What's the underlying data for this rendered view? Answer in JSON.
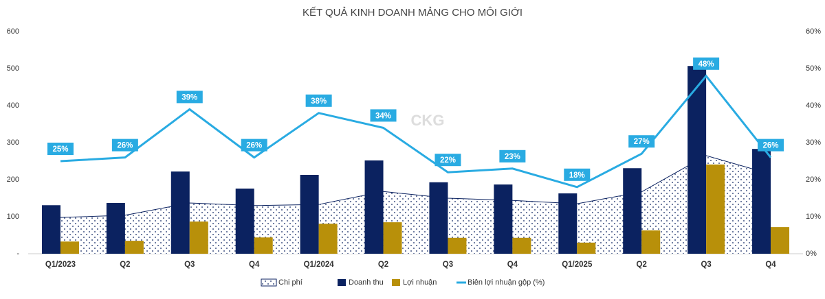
{
  "chart_data": {
    "type": "combo",
    "title": "KẾT QUẢ KINH DOANH MẢNG CHO MÔI GIỚI",
    "watermark": "CKG",
    "categories": [
      "Q1/2023",
      "Q2",
      "Q3",
      "Q4",
      "Q1/2024",
      "Q2",
      "Q3",
      "Q4",
      "Q1/2025",
      "Q2",
      "Q3",
      "Q4"
    ],
    "series": [
      {
        "name": "Chi phí",
        "type": "area",
        "color": "#0b2260",
        "values": [
          98,
          104,
          137,
          130,
          133,
          168,
          150,
          144,
          135,
          167,
          265,
          215
        ]
      },
      {
        "name": "Doanh thu",
        "type": "bar",
        "color": "#0b2260",
        "values": [
          131,
          137,
          222,
          176,
          213,
          252,
          193,
          187,
          163,
          231,
          507,
          283
        ]
      },
      {
        "name": "Lợi nhuận",
        "type": "bar",
        "color": "#b8900a",
        "values": [
          33,
          35,
          87,
          44,
          81,
          85,
          43,
          43,
          30,
          63,
          241,
          72
        ]
      },
      {
        "name": "Biên lợi nhuận gộp (%)",
        "type": "line",
        "axis": "y2",
        "color": "#29abe2",
        "values": [
          25,
          26,
          39,
          26,
          38,
          34,
          22,
          23,
          18,
          27,
          48,
          26
        ],
        "value_labels": [
          "25%",
          "26%",
          "39%",
          "26%",
          "38%",
          "34%",
          "22%",
          "23%",
          "18%",
          "27%",
          "48%",
          "26%"
        ]
      }
    ],
    "ylim": [
      0,
      600
    ],
    "yticks": [
      {
        "value": 0,
        "label": "-"
      },
      100,
      200,
      300,
      400,
      500,
      600
    ],
    "y2lim": [
      0,
      60
    ],
    "y2ticks": [
      {
        "value": 0,
        "label": "0%"
      },
      {
        "value": 10,
        "label": "10%"
      },
      {
        "value": 20,
        "label": "20%"
      },
      {
        "value": 30,
        "label": "30%"
      },
      {
        "value": 40,
        "label": "40%"
      },
      {
        "value": 50,
        "label": "50%"
      },
      {
        "value": 60,
        "label": "60%"
      }
    ],
    "grid": false
  }
}
